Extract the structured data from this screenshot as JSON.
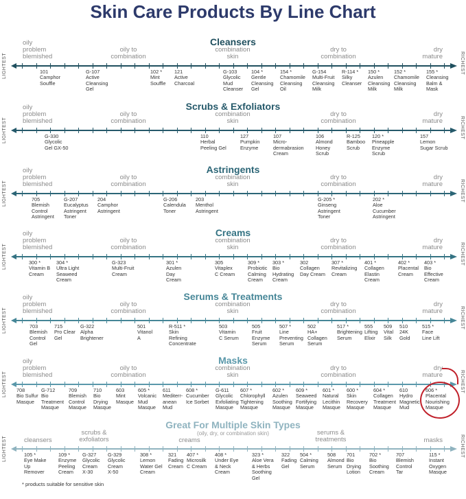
{
  "title": "Skin Care Products By Line Chart",
  "axis_left": "LIGHTEST",
  "axis_right": "RICHEST",
  "zones": [
    "oily\nproblem\nblemished",
    "oily to\ncombination",
    "combination\nskin",
    "dry to\ncombination",
    "dry\nmature"
  ],
  "sections": [
    {
      "title": "Cleansers",
      "color": "#1f4f5e",
      "products": [
        [
          "101",
          "Camphor",
          "Souffle"
        ],
        [
          "G-107",
          "Active",
          "Cleansing",
          "Gel"
        ],
        [
          "102 *",
          "Mint",
          "Souffle"
        ],
        [
          "121",
          "Active",
          "Charcoal"
        ],
        [
          "G-103",
          "Glycolic",
          "Mud",
          "Cleanser"
        ],
        [
          "104 *",
          "Gentle",
          "Cleansing",
          "Gel"
        ],
        [
          "154 *",
          "Chamomile",
          "Cleansing",
          "Oil"
        ],
        [
          "G-154",
          "Multi-Fruit",
          "Cleansing",
          "Milk"
        ],
        [
          "R-114 *",
          "Silky",
          "Cleanser"
        ],
        [
          "150 *",
          "Azulen",
          "Cleansing",
          "Milk"
        ],
        [
          "152 *",
          "Chamomile",
          "Cleansing",
          "Milk"
        ],
        [
          "155 *",
          "Cleansing",
          "Balm &",
          "Mask"
        ]
      ]
    },
    {
      "title": "Scrubs & Exfoliators",
      "color": "#25596a",
      "products": [
        [
          "G-330",
          "Glycolic",
          "Gel GX-50"
        ],
        [
          "110",
          "Herbal",
          "Peeling Gel"
        ],
        [
          "127",
          "Pumpkin",
          "Enzyme"
        ],
        [
          "107",
          "Micro-",
          "dermabrasion",
          "Cream"
        ],
        [
          "106",
          "Almond",
          "Honey",
          "Scrub"
        ],
        [
          "R-125",
          "Bamboo",
          "Scrub"
        ],
        [
          "120 *",
          "Pineapple",
          "Enzyme",
          "Scrub"
        ],
        [
          "157",
          "Lemon",
          "Sugar Scrub"
        ]
      ]
    },
    {
      "title": "Astringents",
      "color": "#2b6576",
      "products": [
        [
          "705",
          "Blemish",
          "Control",
          "Astringent"
        ],
        [
          "G-207",
          "Eucalyptus",
          "Astringent",
          "Toner"
        ],
        [
          "204",
          "Camphor",
          "Astringent"
        ],
        [
          "G-206",
          "Calendula",
          "Toner"
        ],
        [
          "203",
          "Menthol",
          "Astringent"
        ],
        [
          "G-205 *",
          "Ginseng",
          "Astringent",
          "Toner"
        ],
        [
          "202 *",
          "Aloe",
          "Cucumber",
          "Astringent"
        ]
      ]
    },
    {
      "title": "Creams",
      "color": "#347383",
      "products": [
        [
          "300 *",
          "Vitamin B",
          "Cream"
        ],
        [
          "304 *",
          "Ultra Light",
          "Seaweed",
          "Cream"
        ],
        [
          "G-323",
          "Multi-Fruit",
          "Cream"
        ],
        [
          "301 *",
          "Azulen",
          "Day",
          "Cream"
        ],
        [
          "305",
          "Vitaplex",
          "C Cream"
        ],
        [
          "309 *",
          "Probiotic",
          "Calming",
          "Cream"
        ],
        [
          "303 *",
          "Bio",
          "Hydrating",
          "Cream"
        ],
        [
          "302",
          "Collagen",
          "Day Cream"
        ],
        [
          "307 *",
          "Revitalizing",
          "Cream"
        ],
        [
          "401 *",
          "Collagen",
          "Elastin",
          "Cream"
        ],
        [
          "402 *",
          "Placental",
          "Cream"
        ],
        [
          "403 *",
          "Bio",
          "Effective",
          "Cream"
        ]
      ]
    },
    {
      "title": "Serums & Treatments",
      "color": "#468697",
      "products": [
        [
          "703",
          "Blemish",
          "Control",
          "Gel"
        ],
        [
          "715",
          "Pro Clear",
          "Gel"
        ],
        [
          "G-322",
          "Alpha",
          "Brightener"
        ],
        [
          "501",
          "Vitanol",
          "A"
        ],
        [
          "R-511 *",
          "Skin",
          "Refining",
          "Concentrate"
        ],
        [
          "503",
          "Vitamin",
          "C Serum"
        ],
        [
          "505",
          "Fruit",
          "Enzyme",
          "Serum"
        ],
        [
          "507 *",
          "Line",
          "Preventing",
          "Serum"
        ],
        [
          "502",
          "HA+",
          "Collagen",
          "Serum"
        ],
        [
          "517 *",
          "Brightening",
          "Serum"
        ],
        [
          "555",
          "Lifting",
          "Elixir"
        ],
        [
          "509",
          "Vital",
          "Silk"
        ],
        [
          "510",
          "24K",
          "Gold"
        ],
        [
          "515 *",
          "Face",
          "Line Lift"
        ]
      ]
    },
    {
      "title": "Masks",
      "color": "#5a98aa",
      "products": [
        [
          "708",
          "Bio Sulfur",
          "Masque"
        ],
        [
          "G-712",
          "Bio",
          "Treatment",
          "Masque"
        ],
        [
          "709",
          "Blemish",
          "Control",
          "Masque"
        ],
        [
          "710",
          "Bio",
          "Drying",
          "Masque"
        ],
        [
          "603",
          "Mint",
          "Masque"
        ],
        [
          "605 *",
          "Volcanic",
          "Mud",
          "Masque"
        ],
        [
          "611",
          "Mediterr-",
          "anean",
          "Mud"
        ],
        [
          "608 *",
          "Cucumber",
          "Ice Sorbet"
        ],
        [
          "G-611",
          "Glycolic",
          "Exfoliating",
          "Masque"
        ],
        [
          "607 *",
          "Chlorophyll",
          "Tightening",
          "Masque"
        ],
        [
          "602 *",
          "Azulen",
          "Soothing",
          "Masque"
        ],
        [
          "609 *",
          "Seaweed",
          "Fortifying",
          "Masque"
        ],
        [
          "601 *",
          "Natural",
          "Lecithin",
          "Masque"
        ],
        [
          "600 *",
          "Skin",
          "Recovery",
          "Masque"
        ],
        [
          "604 *",
          "Collagen",
          "Treatment",
          "Masque"
        ],
        [
          "610",
          "Hydro",
          "Magnetic",
          "Mud"
        ],
        [
          "606 *",
          "Placental",
          "Nourishing",
          "Masque"
        ]
      ]
    },
    {
      "title": "Great For Multiple Skin Types",
      "color": "#8fb3bf",
      "subtitle": "(oily, dry, or combination skin)",
      "zones": [
        "cleansers",
        "scrubs &\nexfoliators",
        "creams",
        "serums &\ntreatments",
        "masks"
      ],
      "products": [
        [
          "105 *",
          "Eye Make",
          "Up",
          "Remover"
        ],
        [
          "109 *",
          "Enzyme",
          "Peeling",
          "Cream"
        ],
        [
          "G-327",
          "Glycolic",
          "Cream",
          "X-30"
        ],
        [
          "G-329",
          "Glycolic",
          "Cream",
          "X-50"
        ],
        [
          "308 *",
          "Lemon",
          "Water Gel",
          "Cream"
        ],
        [
          "321",
          "Fading",
          "Cream"
        ],
        [
          "407 *",
          "Microsilk",
          "C Cream"
        ],
        [
          "408 *",
          "Under Eye",
          "& Neck",
          "Cream"
        ],
        [
          "323 *",
          "Aloe Vera",
          "& Herbs",
          "Soothing",
          "Gel"
        ],
        [
          "322",
          "Fading",
          "Gel"
        ],
        [
          "504 *",
          "Calming",
          "Serum"
        ],
        [
          "508",
          "Almond",
          "Serum"
        ],
        [
          "701",
          "Bio",
          "Drying",
          "Lotion"
        ],
        [
          "702 *",
          "Bio",
          "Soothing",
          "Cream"
        ],
        [
          "707",
          "Blemish",
          "Control",
          "Tar"
        ],
        [
          "115 *",
          "Instant",
          "Oxygen",
          "Masque"
        ]
      ]
    }
  ],
  "footnote": "* products suitable for sensitive skin",
  "highlight": {
    "product": "606 *",
    "color": "#c0202a"
  }
}
